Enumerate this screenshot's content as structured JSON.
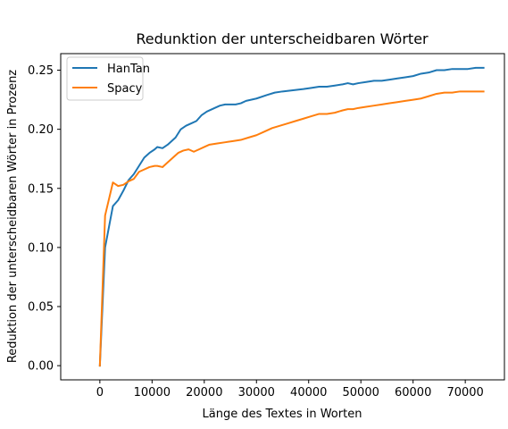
{
  "chart_data": {
    "type": "line",
    "title": "Redunktion der unterscheidbaren Wörter",
    "xlabel": "Länge des Textes in Worten",
    "ylabel": "Reduktion der unterscheidbaren Wörter in Prozenz",
    "xlim": [
      -7500,
      77500
    ],
    "ylim": [
      -0.012,
      0.264
    ],
    "xticks": [
      0,
      10000,
      20000,
      30000,
      40000,
      50000,
      60000,
      70000
    ],
    "xtick_labels": [
      "0",
      "10000",
      "20000",
      "30000",
      "40000",
      "50000",
      "60000",
      "70000"
    ],
    "yticks": [
      0.0,
      0.05,
      0.1,
      0.15,
      0.2,
      0.25
    ],
    "ytick_labels": [
      "0.00",
      "0.05",
      "0.10",
      "0.15",
      "0.20",
      "0.25"
    ],
    "grid": false,
    "legend_position": "upper-left",
    "series": [
      {
        "name": "HanTan",
        "color": "#1f77b4",
        "x": [
          0,
          1000,
          2500,
          3500,
          4500,
          5500,
          6500,
          7500,
          8500,
          9500,
          10500,
          11000,
          12000,
          13000,
          14500,
          15500,
          16500,
          17500,
          18500,
          19500,
          20500,
          22000,
          23000,
          24000,
          25000,
          26000,
          27000,
          28000,
          30000,
          32000,
          33500,
          35000,
          37000,
          39000,
          40500,
          42000,
          43500,
          45000,
          46500,
          47500,
          48500,
          49500,
          51000,
          52500,
          54000,
          55500,
          57000,
          58500,
          60000,
          61500,
          63000,
          64500,
          66000,
          67500,
          69000,
          70500,
          72000,
          73500
        ],
        "y": [
          0.0,
          0.1,
          0.135,
          0.14,
          0.148,
          0.157,
          0.162,
          0.169,
          0.176,
          0.18,
          0.183,
          0.185,
          0.184,
          0.187,
          0.193,
          0.2,
          0.203,
          0.205,
          0.207,
          0.212,
          0.215,
          0.218,
          0.22,
          0.221,
          0.221,
          0.221,
          0.222,
          0.224,
          0.226,
          0.229,
          0.231,
          0.232,
          0.233,
          0.234,
          0.235,
          0.236,
          0.236,
          0.237,
          0.238,
          0.239,
          0.238,
          0.239,
          0.24,
          0.241,
          0.241,
          0.242,
          0.243,
          0.244,
          0.245,
          0.247,
          0.248,
          0.25,
          0.25,
          0.251,
          0.251,
          0.251,
          0.252,
          0.252
        ]
      },
      {
        "name": "Spacy",
        "color": "#ff7f0e",
        "x": [
          0,
          1000,
          2500,
          3500,
          4500,
          5500,
          6500,
          7500,
          8500,
          9500,
          10500,
          11000,
          12000,
          13000,
          14000,
          15000,
          16000,
          17000,
          18000,
          19000,
          20000,
          21000,
          22500,
          24000,
          25500,
          27000,
          28500,
          30000,
          31500,
          33000,
          34500,
          36000,
          37500,
          39000,
          40500,
          42000,
          43500,
          45000,
          46500,
          47500,
          48500,
          49500,
          51000,
          52500,
          54000,
          55500,
          57000,
          58500,
          60000,
          61500,
          63000,
          64500,
          66000,
          67500,
          69000,
          70500,
          72000,
          73500
        ],
        "y": [
          0.0,
          0.127,
          0.155,
          0.152,
          0.153,
          0.156,
          0.158,
          0.164,
          0.166,
          0.168,
          0.169,
          0.169,
          0.168,
          0.172,
          0.176,
          0.18,
          0.182,
          0.183,
          0.181,
          0.183,
          0.185,
          0.187,
          0.188,
          0.189,
          0.19,
          0.191,
          0.193,
          0.195,
          0.198,
          0.201,
          0.203,
          0.205,
          0.207,
          0.209,
          0.211,
          0.213,
          0.213,
          0.214,
          0.216,
          0.217,
          0.217,
          0.218,
          0.219,
          0.22,
          0.221,
          0.222,
          0.223,
          0.224,
          0.225,
          0.226,
          0.228,
          0.23,
          0.231,
          0.231,
          0.232,
          0.232,
          0.232,
          0.232
        ]
      }
    ]
  }
}
